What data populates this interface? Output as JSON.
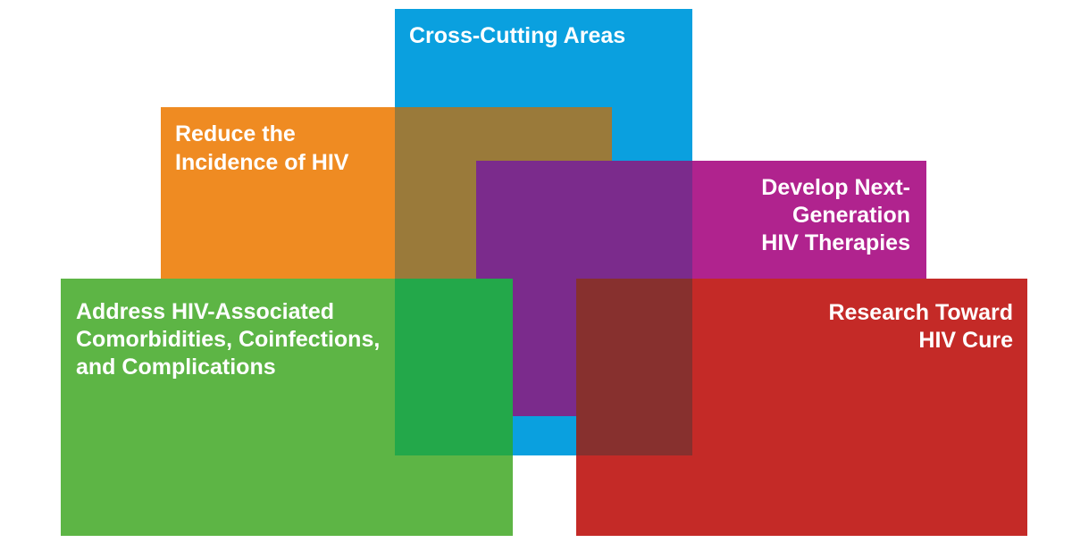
{
  "boxes": [
    {
      "lines": [
        "Cross-Cutting Areas"
      ]
    },
    {
      "lines": [
        "Reduce the",
        "Incidence of HIV"
      ]
    },
    {
      "lines": [
        "Develop Next-",
        "Generation",
        "HIV Therapies"
      ]
    },
    {
      "lines": [
        "Address HIV-Associated",
        "Comorbidities, Coinfections,",
        "and Complications"
      ]
    },
    {
      "lines": [
        "Research Toward",
        "HIV Cure"
      ]
    }
  ]
}
